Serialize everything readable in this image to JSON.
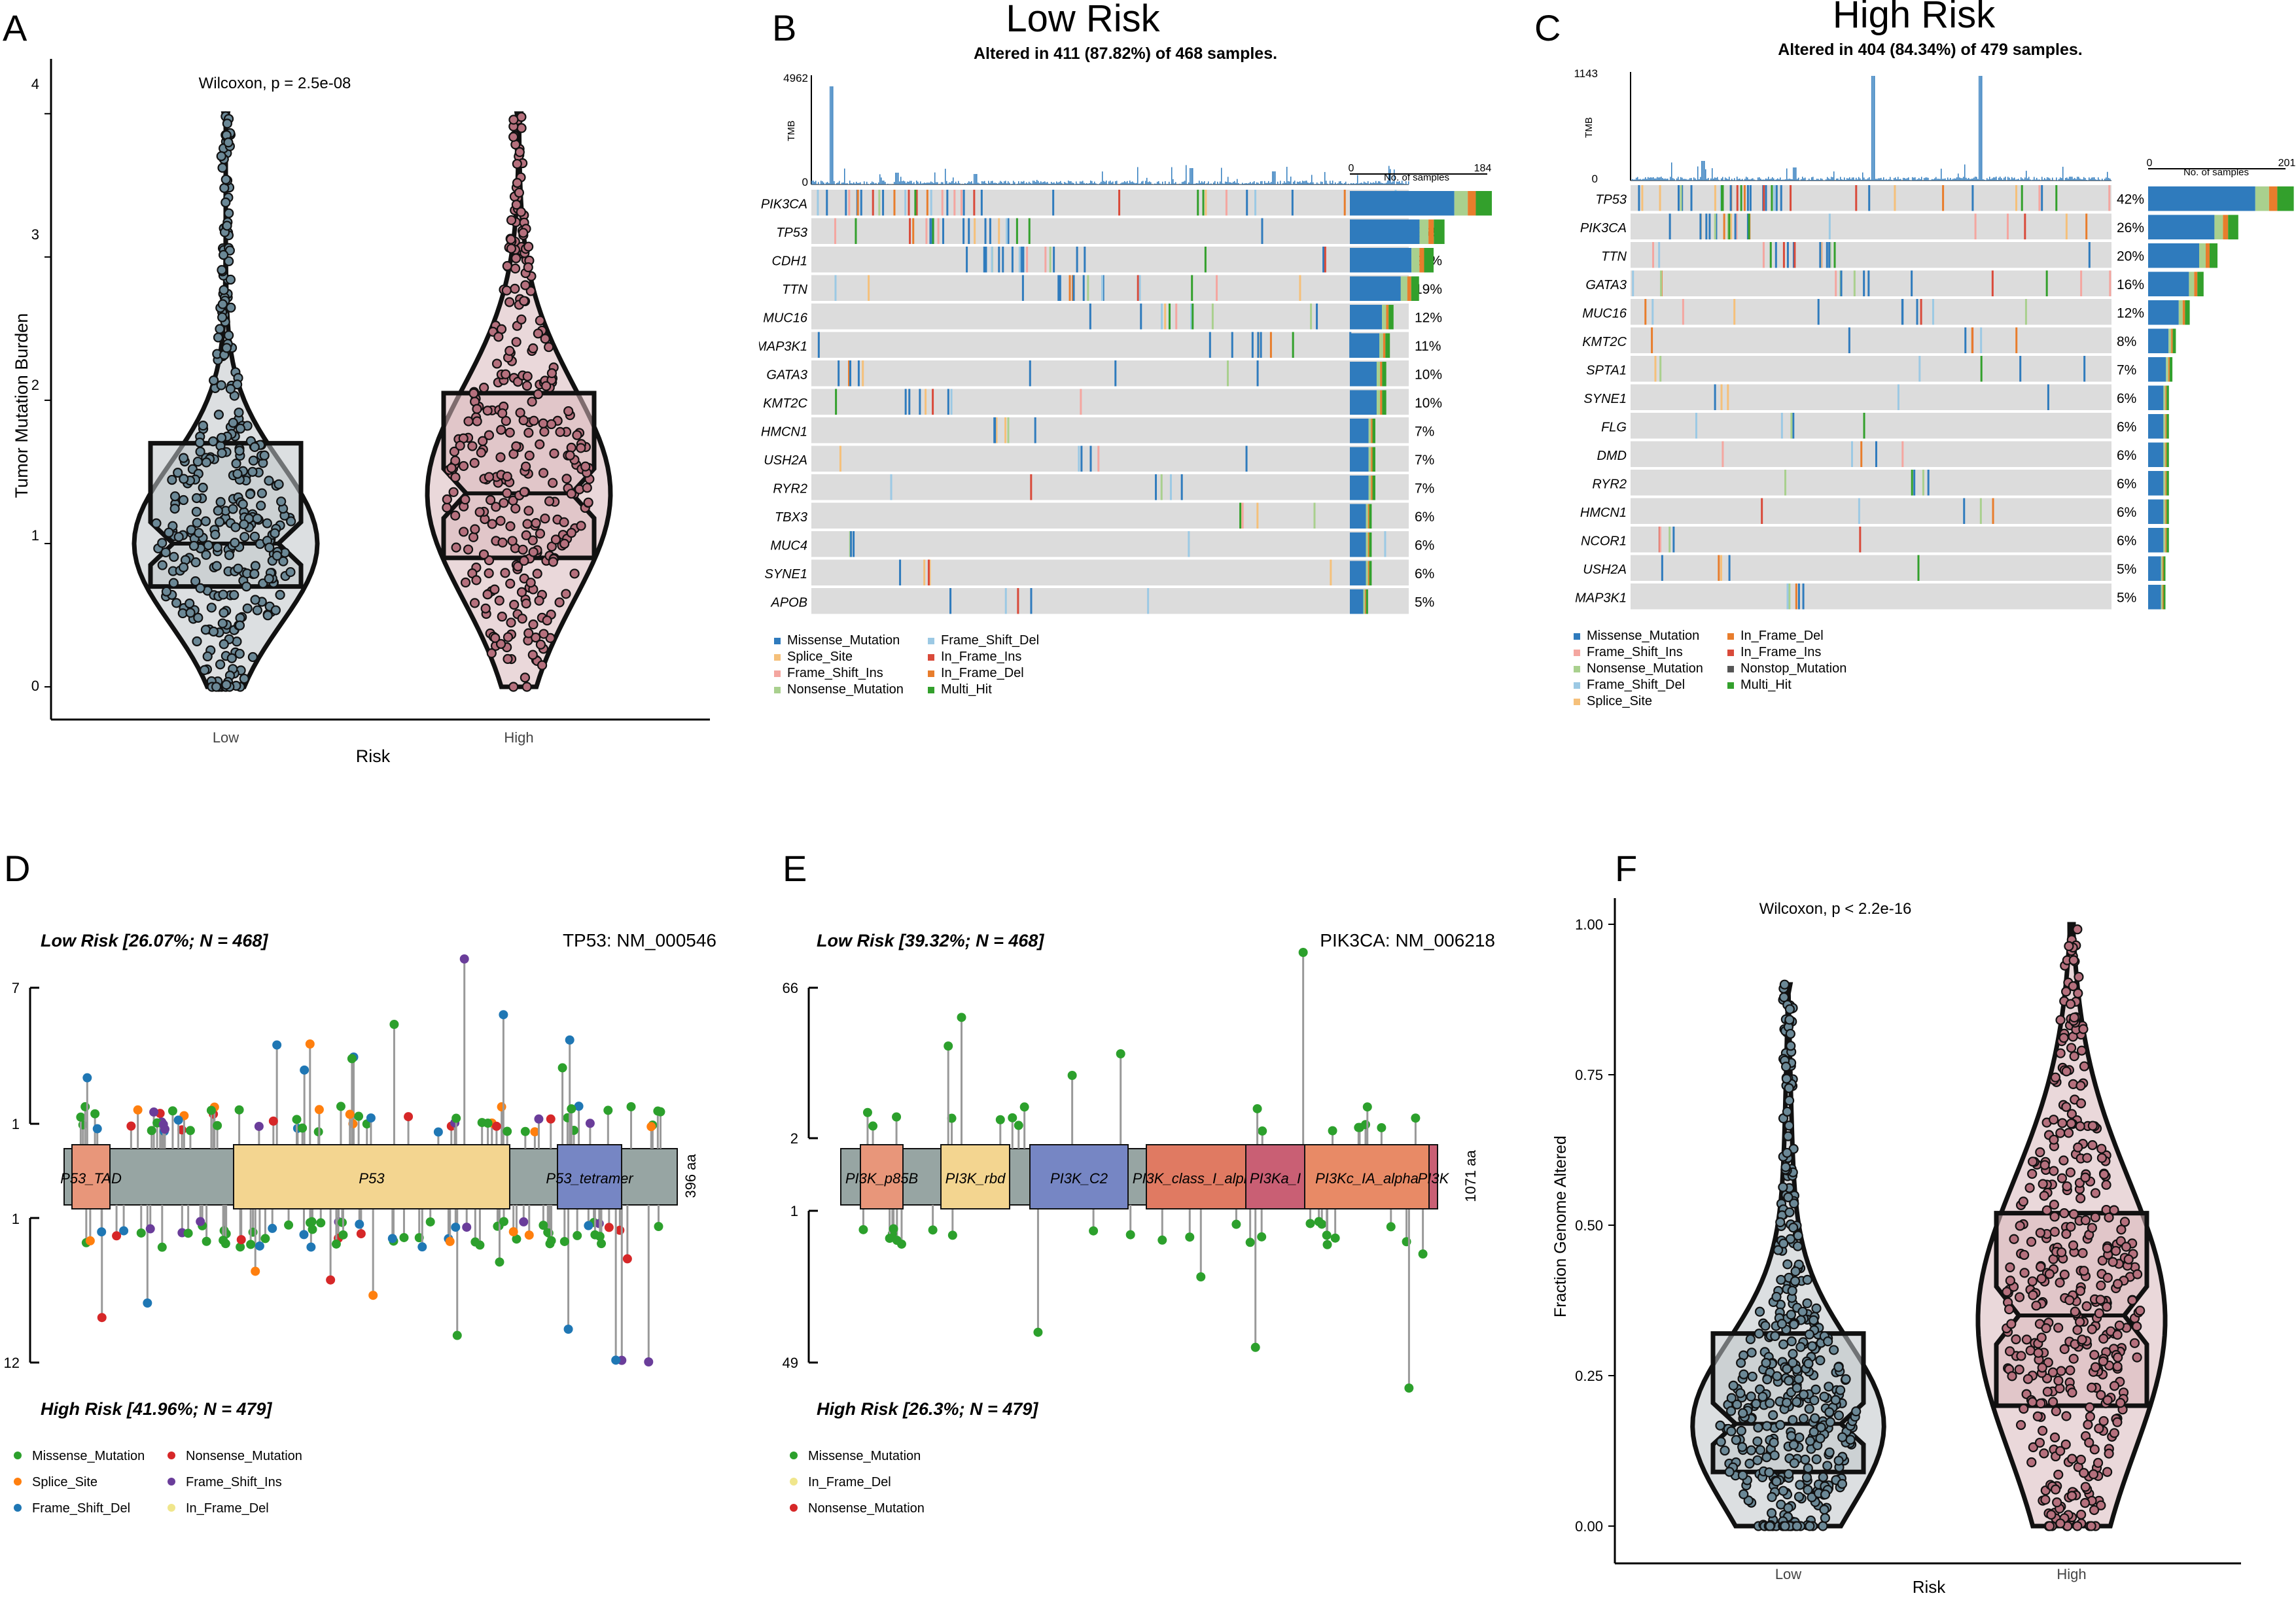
{
  "colors": {
    "missense": "#2f7bbd",
    "splice": "#f5c07a",
    "frame_shift_ins": "#f4a6a0",
    "nonsense": "#a9d08e",
    "frame_shift_del": "#9cc9e4",
    "in_frame_ins": "#d94a3a",
    "in_frame_del": "#e87d2c",
    "multi_hit": "#33a02c",
    "nonstop": "#555555",
    "low_points": "#6b8896",
    "high_points": "#b5707d",
    "lollipop_missense": "#2ca02c",
    "lollipop_nonsense": "#d62728",
    "lollipop_splice": "#ff7f0e",
    "lollipop_fsins": "#6a3d9a",
    "lollipop_fsdel": "#1f77b4",
    "lollipop_ifdel": "#f0e68c"
  },
  "panels": {
    "A": {
      "letter": "A",
      "test": "Wilcoxon, p = 2.5e-08",
      "ylabel": "Tumor Mutation Burden",
      "xlabel": "Risk",
      "ticks": [
        "0",
        "1",
        "2",
        "3",
        "4"
      ],
      "groups": [
        "Low",
        "High"
      ]
    },
    "B": {
      "letter": "B",
      "title": "Low Risk",
      "subtitle": "Altered in 411 (87.82%) of 468 samples.",
      "tmb_label": "TMB",
      "tmb_max": "4962",
      "tmb_min": "0",
      "bar_axis_min": "0",
      "bar_axis_max": "184",
      "bar_axis_label": "No. of samples",
      "genes": [
        "PIK3CA",
        "TP53",
        "CDH1",
        "TTN",
        "MUC16",
        "MAP3K1",
        "GATA3",
        "KMT2C",
        "HMCN1",
        "USH2A",
        "RYR2",
        "TBX3",
        "MUC4",
        "SYNE1",
        "APOB"
      ],
      "percents": [
        "39%",
        "26%",
        "23%",
        "19%",
        "12%",
        "11%",
        "10%",
        "10%",
        "7%",
        "7%",
        "7%",
        "6%",
        "6%",
        "6%",
        "5%"
      ],
      "legend": [
        "Missense_Mutation",
        "Splice_Site",
        "Frame_Shift_Ins",
        "Nonsense_Mutation",
        "Frame_Shift_Del",
        "In_Frame_Ins",
        "In_Frame_Del",
        "Multi_Hit"
      ]
    },
    "C": {
      "letter": "C",
      "title": "High Risk",
      "subtitle": "Altered in 404 (84.34%) of 479 samples.",
      "tmb_label": "TMB",
      "tmb_max": "1143",
      "tmb_min": "0",
      "bar_axis_min": "0",
      "bar_axis_max": "201",
      "bar_axis_label": "No. of samples",
      "genes": [
        "TP53",
        "PIK3CA",
        "TTN",
        "GATA3",
        "MUC16",
        "KMT2C",
        "SPTA1",
        "SYNE1",
        "FLG",
        "DMD",
        "RYR2",
        "HMCN1",
        "NCOR1",
        "USH2A",
        "MAP3K1"
      ],
      "percents": [
        "42%",
        "26%",
        "20%",
        "16%",
        "12%",
        "8%",
        "7%",
        "6%",
        "6%",
        "6%",
        "6%",
        "6%",
        "6%",
        "5%",
        "5%"
      ],
      "legend": [
        "Missense_Mutation",
        "Frame_Shift_Ins",
        "Nonsense_Mutation",
        "Frame_Shift_Del",
        "Splice_Site",
        "In_Frame_Del",
        "In_Frame_Ins",
        "Nonstop_Mutation",
        "Multi_Hit"
      ]
    },
    "D": {
      "letter": "D",
      "low_label": "Low Risk [26.07%; N = 468]",
      "high_label": "High Risk [41.96%; N = 479]",
      "gene_label": "TP53: NM_000546",
      "aa_label": "396 aa",
      "y_top": "7",
      "y_mid_top": "1",
      "y_mid_bottom": "1",
      "y_bottom": "12",
      "domains": [
        "P53_TAD",
        "P53",
        "P53_tetramer"
      ],
      "legend": [
        "Missense_Mutation",
        "Nonsense_Mutation",
        "Splice_Site",
        "Frame_Shift_Ins",
        "Frame_Shift_Del",
        "In_Frame_Del"
      ]
    },
    "E": {
      "letter": "E",
      "low_label": "Low Risk [39.32%; N = 468]",
      "high_label": "High Risk [26.3%; N = 479]",
      "gene_label": "PIK3CA: NM_006218",
      "aa_label": "1071 aa",
      "y_top": "66",
      "y_mid_top": "2",
      "y_mid_bottom": "1",
      "y_bottom": "49",
      "domains": [
        "PI3K_p85B",
        "PI3K_rbd",
        "PI3K_C2",
        "PI3K_class_I_alpha",
        "PI3Ka_I",
        "PI3Kc_IA_alpha",
        "PI3K"
      ],
      "legend": [
        "Missense_Mutation",
        "In_Frame_Del",
        "Nonsense_Mutation"
      ]
    },
    "F": {
      "letter": "F",
      "test": "Wilcoxon, p < 2.2e-16",
      "ylabel": "Fraction Genome Altered",
      "xlabel": "Risk",
      "ticks": [
        "0.00",
        "0.25",
        "0.50",
        "0.75",
        "1.00"
      ],
      "groups": [
        "Low",
        "High"
      ]
    }
  },
  "chart_data": [
    {
      "type": "violin-box",
      "panel": "A",
      "title": "Wilcoxon, p = 2.5e-08",
      "xlabel": "Risk",
      "ylabel": "Tumor Mutation Burden",
      "categories": [
        "Low",
        "High"
      ],
      "ylim": [
        0,
        4.2
      ],
      "series": [
        {
          "name": "Low",
          "q1": 0.7,
          "median": 1.0,
          "q3": 1.7,
          "max": 4.0,
          "min": 0
        },
        {
          "name": "High",
          "q1": 0.9,
          "median": 1.35,
          "q3": 2.05,
          "max": 4.0,
          "min": 0
        }
      ]
    },
    {
      "type": "bar",
      "panel": "B",
      "title": "Low Risk",
      "categories": [
        "PIK3CA",
        "TP53",
        "CDH1",
        "TTN",
        "MUC16",
        "MAP3K1",
        "GATA3",
        "KMT2C",
        "HMCN1",
        "USH2A",
        "RYR2",
        "TBX3",
        "MUC4",
        "SYNE1",
        "APOB"
      ],
      "values": [
        39,
        26,
        23,
        19,
        12,
        11,
        10,
        10,
        7,
        7,
        7,
        6,
        6,
        6,
        5
      ],
      "ylabel": "Percent altered"
    },
    {
      "type": "bar",
      "panel": "C",
      "title": "High Risk",
      "categories": [
        "TP53",
        "PIK3CA",
        "TTN",
        "GATA3",
        "MUC16",
        "KMT2C",
        "SPTA1",
        "SYNE1",
        "FLG",
        "DMD",
        "RYR2",
        "HMCN1",
        "NCOR1",
        "USH2A",
        "MAP3K1"
      ],
      "values": [
        42,
        26,
        20,
        16,
        12,
        8,
        7,
        6,
        6,
        6,
        6,
        6,
        6,
        5,
        5
      ],
      "ylabel": "Percent altered"
    },
    {
      "type": "violin-box",
      "panel": "F",
      "title": "Wilcoxon, p < 2.2e-16",
      "xlabel": "Risk",
      "ylabel": "Fraction Genome Altered",
      "categories": [
        "Low",
        "High"
      ],
      "ylim": [
        0,
        1.0
      ],
      "series": [
        {
          "name": "Low",
          "q1": 0.09,
          "median": 0.17,
          "q3": 0.32,
          "max": 0.9,
          "min": 0
        },
        {
          "name": "High",
          "q1": 0.2,
          "median": 0.35,
          "q3": 0.52,
          "max": 1.0,
          "min": 0
        }
      ]
    }
  ]
}
